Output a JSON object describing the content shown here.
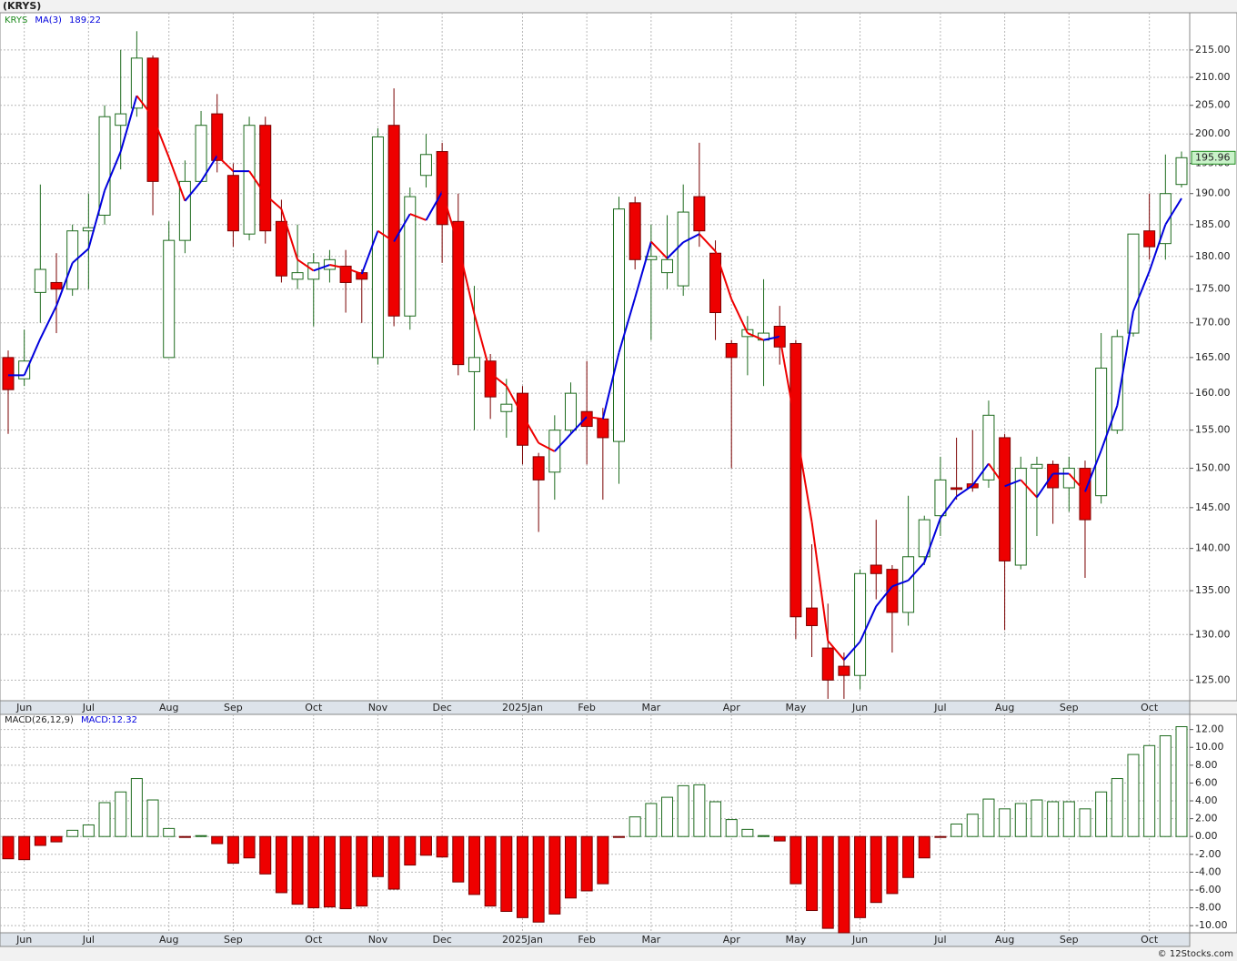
{
  "chart_data": [
    {
      "type": "candlestick",
      "title": "(KRYS)",
      "price_name": "KRYS",
      "categories": [
        null,
        "Jun",
        null,
        null,
        null,
        "Jul",
        null,
        null,
        null,
        null,
        "Aug",
        null,
        null,
        null,
        "Sep",
        null,
        null,
        null,
        null,
        "Oct",
        null,
        null,
        null,
        "Nov",
        null,
        null,
        null,
        "Dec",
        null,
        null,
        null,
        null,
        "2025Jan",
        null,
        null,
        null,
        "Feb",
        null,
        null,
        null,
        "Mar",
        null,
        null,
        null,
        null,
        "Apr",
        null,
        null,
        null,
        "May",
        null,
        null,
        null,
        "Jun",
        null,
        null,
        null,
        null,
        "Jul",
        null,
        null,
        null,
        "Aug",
        null,
        null,
        null,
        "Sep",
        null,
        null,
        null,
        null,
        "Oct",
        null,
        null
      ],
      "open": [
        165,
        162,
        174.5,
        176,
        175,
        184,
        186.5,
        201.5,
        204.5,
        213.5,
        165,
        182.5,
        192,
        203.5,
        193,
        183.5,
        201.5,
        185.5,
        176.5,
        176.5,
        178,
        178.5,
        177.5,
        165,
        201.5,
        171,
        193,
        197,
        185.5,
        163,
        164.5,
        157.5,
        160,
        151.5,
        149.5,
        155,
        157.5,
        156.5,
        153.5,
        188.5,
        179.5,
        177.5,
        175.5,
        189.5,
        180.5,
        167,
        168,
        167.5,
        169.5,
        167,
        133,
        128.5,
        126.5,
        125.5,
        138,
        137.5,
        132.5,
        139,
        144,
        147.5,
        148,
        148.5,
        154,
        138,
        150,
        150.5,
        147.5,
        150,
        146.5,
        155,
        168.5,
        184,
        182,
        191.5
      ],
      "high": [
        166,
        169,
        191.5,
        180.5,
        185,
        190,
        205,
        215,
        218.5,
        214,
        185.5,
        195.5,
        204,
        207,
        195,
        203,
        203,
        189,
        185,
        180.5,
        181,
        181,
        178,
        201,
        208,
        191,
        200,
        198.5,
        190,
        175.5,
        165.5,
        162,
        161,
        152,
        157,
        161.5,
        164.5,
        158,
        189.5,
        189.5,
        185,
        186.5,
        191.5,
        198.5,
        182.5,
        167.5,
        171,
        176.5,
        172.5,
        167.5,
        140.5,
        133.5,
        128,
        137.5,
        143.5,
        138,
        146.5,
        144,
        151.5,
        154,
        155,
        159,
        154.5,
        151.5,
        151.5,
        151,
        151.5,
        151,
        168.5,
        169,
        183.5,
        190,
        196.5,
        197
      ],
      "low": [
        154.5,
        161,
        170,
        168.5,
        174,
        175,
        185,
        194,
        203,
        186.5,
        165,
        180.5,
        192,
        193.5,
        181.5,
        182.5,
        182,
        176,
        175,
        169.5,
        176,
        171.5,
        170,
        164,
        169.5,
        169,
        191,
        179,
        162.5,
        155,
        156.5,
        154,
        150.5,
        142,
        146,
        154.5,
        150.5,
        146,
        148,
        178,
        167.5,
        175,
        174,
        181.5,
        167.5,
        150,
        162.5,
        161,
        164,
        129.5,
        127.5,
        123,
        123,
        124,
        134,
        128,
        131,
        138,
        141.5,
        146,
        147,
        147.5,
        130.5,
        137.5,
        141.5,
        143,
        144.5,
        136.5,
        145.5,
        154.5,
        168,
        179.5,
        179.5,
        191
      ],
      "close": [
        160.5,
        164.5,
        178,
        175,
        184,
        184.5,
        203,
        203.5,
        213.5,
        192,
        182.5,
        192,
        201.5,
        195.5,
        184,
        201.5,
        184,
        177,
        177.5,
        179,
        179.5,
        176,
        176.5,
        199.5,
        171,
        189.5,
        196.5,
        185,
        164,
        165,
        159.5,
        158.5,
        153,
        148.5,
        155,
        160,
        155.5,
        154,
        187.5,
        179.5,
        180,
        179.5,
        187,
        184,
        171.5,
        165,
        169,
        168.5,
        166.5,
        132,
        131,
        125,
        125.5,
        137,
        137,
        132.5,
        139,
        143.5,
        148.5,
        147.3,
        147.5,
        157,
        138.5,
        150,
        150.5,
        147.5,
        150,
        143.5,
        163.5,
        168,
        183.5,
        181.5,
        190,
        195.96
      ],
      "up_color": "#1e6b1e",
      "down_color": "#ee0000",
      "price_name_color": "#1e8b1e",
      "series": [
        {
          "name": "MA(3)",
          "color": "#0000dd",
          "down_color": "#ee0000",
          "values": [
            162.5,
            162.5,
            167.7,
            172.5,
            179,
            181.2,
            190.5,
            197,
            206.7,
            203,
            196,
            188.8,
            192,
            196.3,
            193.7,
            193.7,
            189.8,
            187.5,
            179.5,
            177.8,
            178.7,
            178.2,
            177.3,
            184,
            182.3,
            186.7,
            185.7,
            190.3,
            181.8,
            171.3,
            162.8,
            161,
            157,
            153.3,
            152.2,
            154.5,
            156.8,
            156.5,
            165.7,
            173.7,
            182.3,
            179.7,
            182.2,
            183.5,
            180.8,
            173.5,
            168.5,
            167.5,
            168,
            155.5,
            143.2,
            129.3,
            127.2,
            129.2,
            133.2,
            135.5,
            136.2,
            138.3,
            143.7,
            146.4,
            147.8,
            150.6,
            147.7,
            148.5,
            146.3,
            149.3,
            149.3,
            147,
            152.3,
            158.3,
            171.7,
            177.7,
            185,
            189.22
          ]
        }
      ],
      "ylim": [
        122.8,
        222
      ],
      "log_scale": true,
      "grid": true,
      "yticks": [
        {
          "value": 125,
          "label": "125.00"
        },
        {
          "value": 130,
          "label": "130.00"
        },
        {
          "value": 135,
          "label": "135.00"
        },
        {
          "value": 140,
          "label": "140.00"
        },
        {
          "value": 145,
          "label": "145.00"
        },
        {
          "value": 150,
          "label": "150.00"
        },
        {
          "value": 155,
          "label": "155.00"
        },
        {
          "value": 160,
          "label": "160.00"
        },
        {
          "value": 165,
          "label": "165.00"
        },
        {
          "value": 170,
          "label": "170.00"
        },
        {
          "value": 175,
          "label": "175.00"
        },
        {
          "value": 180,
          "label": "180.00"
        },
        {
          "value": 185,
          "label": "185.00"
        },
        {
          "value": 190,
          "label": "190.00"
        },
        {
          "value": 195,
          "label": "195.00"
        },
        {
          "value": 200,
          "label": "200.00"
        },
        {
          "value": 205,
          "label": "205.00"
        },
        {
          "value": 210,
          "label": "210.00"
        },
        {
          "value": 215,
          "label": "215.00"
        }
      ]
    },
    {
      "type": "bar",
      "title": "MACD(26,12,9)",
      "series": [
        {
          "name": "MACD:",
          "color": "#0000dd",
          "values": [
            -2.5,
            -2.6,
            -1.0,
            -0.6,
            0.7,
            1.3,
            3.8,
            5.0,
            6.5,
            4.1,
            0.9,
            -0.1,
            0.1,
            -0.8,
            -3.0,
            -2.4,
            -4.2,
            -6.3,
            -7.6,
            -8.0,
            -7.9,
            -8.1,
            -7.8,
            -4.5,
            -5.9,
            -3.2,
            -2.1,
            -2.3,
            -5.1,
            -6.5,
            -7.8,
            -8.4,
            -9.1,
            -9.6,
            -8.7,
            -6.9,
            -6.1,
            -5.3,
            -0.1,
            2.2,
            3.7,
            4.4,
            5.7,
            5.8,
            3.9,
            1.9,
            0.8,
            0.1,
            -0.5,
            -5.3,
            -8.3,
            -10.3,
            -10.8,
            -9.1,
            -7.4,
            -6.4,
            -4.6,
            -2.4,
            -0.1,
            1.4,
            2.5,
            4.2,
            3.1,
            3.7,
            4.1,
            3.9,
            3.9,
            3.1,
            5.0,
            6.5,
            9.2,
            10.2,
            11.3,
            12.32
          ]
        }
      ],
      "positive_color": "#1e6b1e",
      "negative_color": "#ee0000",
      "ylim": [
        -10.8,
        13.7
      ],
      "grid": true,
      "yticks": [
        {
          "value": -10,
          "label": "-10.00"
        },
        {
          "value": -8,
          "label": "-8.00"
        },
        {
          "value": -6,
          "label": "-6.00"
        },
        {
          "value": -4,
          "label": "-4.00"
        },
        {
          "value": -2,
          "label": "-2.00"
        },
        {
          "value": 0,
          "label": "0.00"
        },
        {
          "value": 2,
          "label": "2.00"
        },
        {
          "value": 4,
          "label": "4.00"
        },
        {
          "value": 6,
          "label": "6.00"
        },
        {
          "value": 8,
          "label": "8.00"
        },
        {
          "value": 10,
          "label": "10.00"
        },
        {
          "value": 12,
          "label": "12.00"
        }
      ]
    }
  ],
  "footer": "© 12Stocks.com"
}
